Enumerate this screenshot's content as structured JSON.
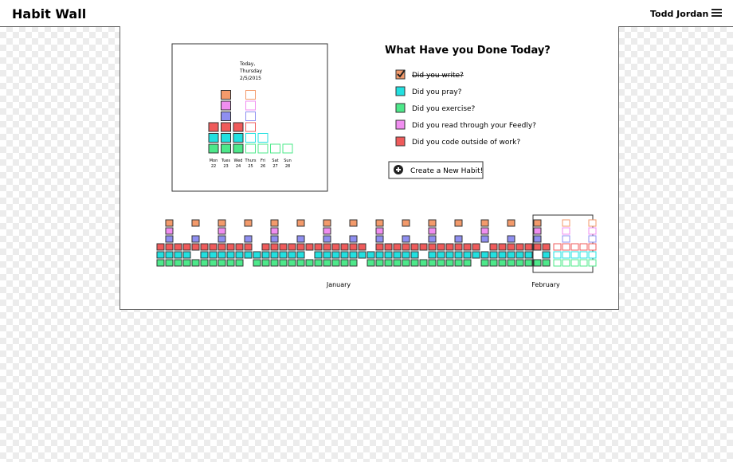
{
  "header": {
    "title": "Habit Wall",
    "user": "Todd Jordan"
  },
  "today": {
    "lines": [
      "Today,",
      "Thursday",
      "2/5/2015"
    ],
    "days": [
      "Mon",
      "Tues",
      "Wed",
      "Thurs",
      "Fri",
      "Sat",
      "Sun"
    ],
    "dates": [
      "22",
      "23",
      "24",
      "25",
      "26",
      "27",
      "28"
    ]
  },
  "question": "What Have you Done Today?",
  "habits": [
    {
      "label": "Did you write?",
      "color": "#f39a6b"
    },
    {
      "label": "Did you pray?",
      "color": "#22e0e0"
    },
    {
      "label": "Did you exercise?",
      "color": "#4de88a"
    },
    {
      "label": "Did you read through your Feedly?",
      "color": "#f08ef0"
    },
    {
      "label": "Did you code outside of work?",
      "color": "#ef5b5b"
    }
  ],
  "button": "Create a New Habit!",
  "months": [
    "January",
    "February"
  ]
}
